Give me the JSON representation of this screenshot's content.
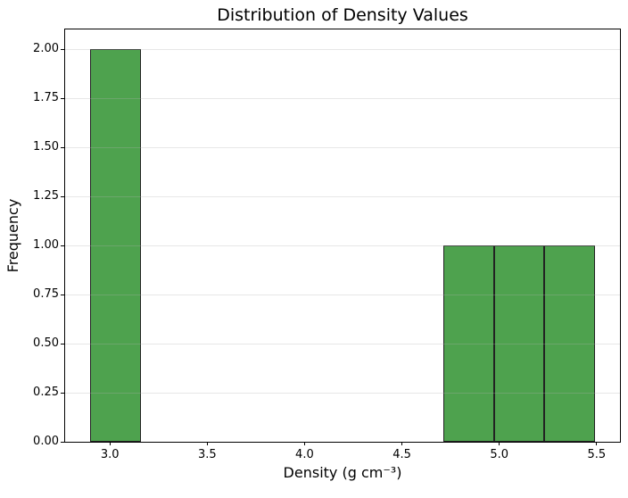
{
  "chart_data": {
    "type": "bar",
    "subtype": "histogram",
    "title": "Distribution of Density Values",
    "xlabel": "Density (g cm⁻³)",
    "ylabel": "Frequency",
    "bin_edges": [
      2.9,
      3.159,
      3.418,
      3.677,
      3.936,
      4.195,
      4.454,
      4.713,
      4.972,
      5.231,
      5.49
    ],
    "counts": [
      2,
      0,
      0,
      0,
      0,
      0,
      0,
      1,
      1,
      1
    ],
    "xlim": [
      2.77,
      5.62
    ],
    "ylim": [
      0,
      2.1
    ],
    "xticks": [
      {
        "value": 3.0,
        "label": "3.0"
      },
      {
        "value": 3.5,
        "label": "3.5"
      },
      {
        "value": 4.0,
        "label": "4.0"
      },
      {
        "value": 4.5,
        "label": "4.5"
      },
      {
        "value": 5.0,
        "label": "5.0"
      },
      {
        "value": 5.5,
        "label": "5.5"
      }
    ],
    "yticks": [
      {
        "value": 0.0,
        "label": "0.00"
      },
      {
        "value": 0.25,
        "label": "0.25"
      },
      {
        "value": 0.5,
        "label": "0.50"
      },
      {
        "value": 0.75,
        "label": "0.75"
      },
      {
        "value": 1.0,
        "label": "1.00"
      },
      {
        "value": 1.25,
        "label": "1.25"
      },
      {
        "value": 1.5,
        "label": "1.50"
      },
      {
        "value": 1.75,
        "label": "1.75"
      },
      {
        "value": 2.0,
        "label": "2.00"
      }
    ],
    "grid": "y",
    "grid_color": "#b0b0b0",
    "grid_alpha": 0.3,
    "bar_color": "#4ea24e",
    "bar_edge_color": "#222222",
    "axis_color": "#000000",
    "background": "#ffffff",
    "legend": "none"
  }
}
